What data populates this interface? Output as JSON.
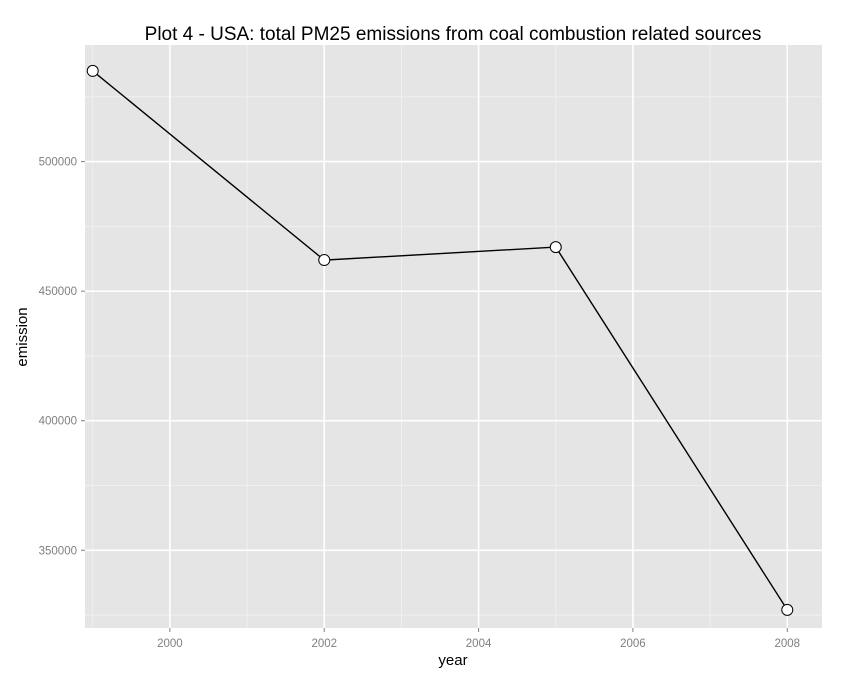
{
  "chart_data": {
    "type": "line",
    "title": "Plot 4 - USA: total PM25 emissions from coal combustion related sources",
    "xlabel": "year",
    "ylabel": "emission",
    "x": [
      1999,
      2002,
      2005,
      2008
    ],
    "series": [
      {
        "values": [
          535000,
          462000,
          467000,
          327000
        ]
      }
    ],
    "xlim": [
      1998.9,
      2008.45
    ],
    "ylim": [
      320000,
      545000
    ],
    "xticks": [
      2000,
      2002,
      2004,
      2006,
      2008
    ],
    "xtick_labels": [
      "2000",
      "2002",
      "2004",
      "2006",
      "2008"
    ],
    "yticks": [
      350000,
      400000,
      450000,
      500000
    ],
    "ytick_labels": [
      "350000",
      "400000",
      "450000",
      "500000"
    ],
    "grid": true,
    "legend": "none",
    "colors": {
      "panel_background": "#e5e5e5",
      "grid_major": "#ffffff",
      "grid_minor": "#f2f2f2",
      "line": "#000000",
      "marker_fill": "#ffffff",
      "marker_stroke": "#000000"
    }
  }
}
